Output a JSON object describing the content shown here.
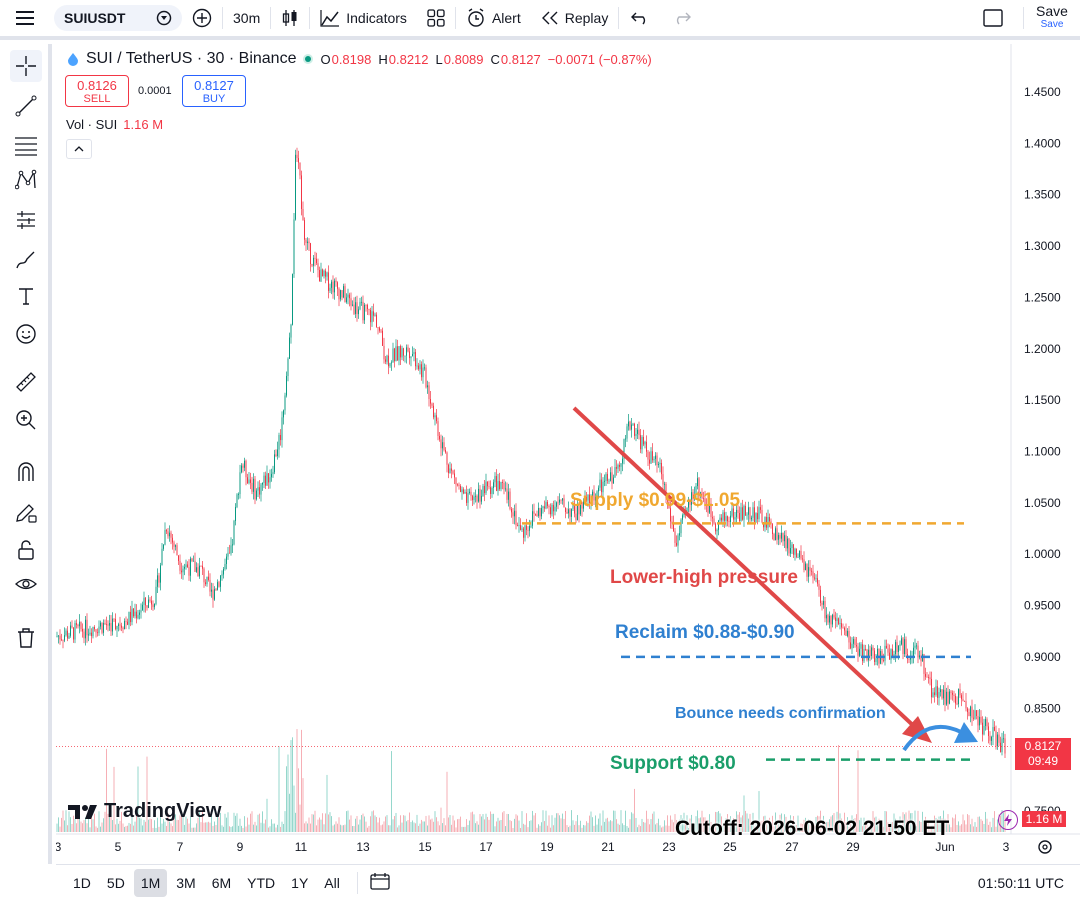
{
  "toolbar": {
    "symbol": "SUIUSDT",
    "interval": "30m",
    "indicators": "Indicators",
    "alert": "Alert",
    "replay": "Replay",
    "save": "Save",
    "save_sub": "Save"
  },
  "legend": {
    "title": "SUI / TetherUS · 30 · Binance",
    "o_label": "O",
    "o": "0.8198",
    "h_label": "H",
    "h": "0.8212",
    "l_label": "L",
    "l": "0.8089",
    "c_label": "C",
    "c": "0.8127",
    "change": "−0.0071 (−0.87%)",
    "sell_price": "0.8126",
    "sell_label": "SELL",
    "spread": "0.0001",
    "buy_price": "0.8127",
    "buy_label": "BUY",
    "vol_label": "Vol · SUI",
    "vol_value": "1.16 M"
  },
  "price_axis": [
    "1.4500",
    "1.4000",
    "1.3500",
    "1.3000",
    "1.2500",
    "1.2000",
    "1.1500",
    "1.1000",
    "1.0500",
    "1.0000",
    "0.9500",
    "0.9000",
    "0.8500",
    "0.7500"
  ],
  "time_axis": [
    "3",
    "5",
    "7",
    "9",
    "11",
    "13",
    "15",
    "17",
    "19",
    "21",
    "23",
    "25",
    "27",
    "29",
    "Jun",
    "3"
  ],
  "last_price": {
    "value": "0.8127",
    "countdown": "09:49",
    "volume": "1.16 M"
  },
  "annotations": {
    "supply": "Supply $0.99-$1.05",
    "lower_high": "Lower-high pressure",
    "reclaim": "Reclaim $0.88-$0.90",
    "bounce": "Bounce needs confirmation",
    "support": "Support $0.80",
    "cutoff": "Cutoff: 2026-06-02 21:50 ET"
  },
  "watermark": "TradingView",
  "ranges": [
    "1D",
    "5D",
    "1M",
    "3M",
    "6M",
    "YTD",
    "1Y",
    "All"
  ],
  "active_range": "1M",
  "clock": "01:50:11 UTC",
  "colors": {
    "up": "#089981",
    "down": "#f23645",
    "supply": "#f0a830",
    "reclaim": "#2f80d0",
    "support": "#1a9e6a",
    "arrow_red": "#e04848"
  },
  "chart_data": {
    "type": "candlestick",
    "ylim": [
      0.74,
      1.47
    ],
    "series": [
      {
        "name": "SUI / TetherUS",
        "x": [
          "3",
          "5",
          "7",
          "9",
          "11",
          "13",
          "15",
          "17",
          "19",
          "21",
          "23",
          "25",
          "27",
          "29",
          "Jun 1",
          "3"
        ],
        "close": [
          0.92,
          0.94,
          0.98,
          1.08,
          1.3,
          1.24,
          1.18,
          1.05,
          1.04,
          1.08,
          1.02,
          1.04,
          0.99,
          0.92,
          0.89,
          0.8127
        ]
      }
    ],
    "levels": [
      {
        "label": "Supply $0.99-$1.05",
        "value": 1.03
      },
      {
        "label": "Reclaim $0.88-$0.90",
        "value": 0.9
      },
      {
        "label": "Support $0.80",
        "value": 0.8
      }
    ]
  }
}
